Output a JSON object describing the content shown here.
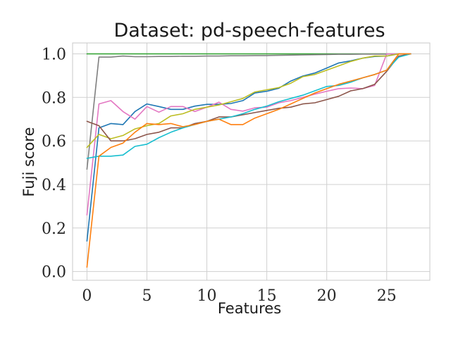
{
  "chart_data": {
    "type": "line",
    "title": "Dataset: pd-speech-features",
    "xlabel": "Features",
    "ylabel": "Fuji score",
    "xlim": [
      -1.2,
      28.6
    ],
    "ylim": [
      -0.04,
      1.05
    ],
    "xticks": [
      0,
      5,
      10,
      15,
      20,
      25
    ],
    "xtick_labels": [
      "0",
      "5",
      "10",
      "15",
      "20",
      "25"
    ],
    "yticks": [
      0.0,
      0.2,
      0.4,
      0.6,
      0.8,
      1.0
    ],
    "ytick_labels": [
      "0.0",
      "0.2",
      "0.4",
      "0.6",
      "0.8",
      "1.0"
    ],
    "grid": true,
    "legend": "none",
    "x": [
      0,
      1,
      2,
      3,
      4,
      5,
      6,
      7,
      8,
      9,
      10,
      11,
      12,
      13,
      14,
      15,
      16,
      17,
      18,
      19,
      20,
      21,
      22,
      23,
      24,
      25,
      26,
      27
    ],
    "series": [
      {
        "color": "#2ca02c",
        "values": [
          1.0,
          1.0,
          1.0,
          1.0,
          1.0,
          1.0,
          1.0,
          1.0,
          1.0,
          1.0,
          1.0,
          1.0,
          1.0,
          1.0,
          1.0,
          1.0,
          1.0,
          1.0,
          1.0,
          1.0,
          1.0,
          1.0,
          1.0,
          1.0,
          1.0,
          1.0,
          1.0,
          1.0
        ]
      },
      {
        "color": "#7f7f7f",
        "values": [
          0.47,
          0.985,
          0.985,
          0.99,
          0.987,
          0.987,
          0.988,
          0.988,
          0.989,
          0.989,
          0.99,
          0.99,
          0.991,
          0.991,
          0.992,
          0.992,
          0.993,
          0.994,
          0.995,
          0.996,
          0.997,
          0.998,
          0.998,
          0.999,
          0.999,
          0.999,
          1.0,
          1.0
        ]
      },
      {
        "color": "#1f77b4",
        "values": [
          0.14,
          0.66,
          0.68,
          0.675,
          0.735,
          0.77,
          0.758,
          0.745,
          0.745,
          0.76,
          0.768,
          0.768,
          0.772,
          0.785,
          0.82,
          0.828,
          0.842,
          0.875,
          0.898,
          0.912,
          0.935,
          0.958,
          0.968,
          0.98,
          0.988,
          0.99,
          1.0,
          1.0
        ]
      },
      {
        "color": "#e377c2",
        "values": [
          0.26,
          0.77,
          0.785,
          0.735,
          0.7,
          0.758,
          0.732,
          0.758,
          0.758,
          0.735,
          0.755,
          0.778,
          0.745,
          0.737,
          0.752,
          0.755,
          0.775,
          0.785,
          0.8,
          0.815,
          0.828,
          0.84,
          0.843,
          0.84,
          0.855,
          1.0,
          1.0,
          1.0
        ]
      },
      {
        "color": "#bcbd22",
        "values": [
          0.57,
          0.63,
          0.61,
          0.625,
          0.655,
          0.67,
          0.68,
          0.715,
          0.725,
          0.745,
          0.755,
          0.765,
          0.78,
          0.795,
          0.825,
          0.835,
          0.845,
          0.865,
          0.895,
          0.905,
          0.925,
          0.945,
          0.965,
          0.98,
          0.99,
          0.99,
          1.0,
          1.0
        ]
      },
      {
        "color": "#8c564b",
        "values": [
          0.69,
          0.67,
          0.6,
          0.6,
          0.61,
          0.63,
          0.64,
          0.66,
          0.66,
          0.68,
          0.69,
          0.71,
          0.71,
          0.72,
          0.73,
          0.74,
          0.75,
          0.755,
          0.77,
          0.775,
          0.79,
          0.805,
          0.83,
          0.84,
          0.86,
          0.92,
          0.99,
          1.0
        ]
      },
      {
        "color": "#17becf",
        "values": [
          0.52,
          0.53,
          0.53,
          0.535,
          0.575,
          0.585,
          0.615,
          0.64,
          0.66,
          0.675,
          0.69,
          0.7,
          0.71,
          0.725,
          0.745,
          0.76,
          0.78,
          0.795,
          0.81,
          0.83,
          0.85,
          0.855,
          0.87,
          0.89,
          0.905,
          0.925,
          0.985,
          1.0
        ]
      },
      {
        "color": "#ff7f0e",
        "values": [
          0.02,
          0.53,
          0.57,
          0.59,
          0.64,
          0.68,
          0.675,
          0.68,
          0.665,
          0.675,
          0.69,
          0.7,
          0.675,
          0.675,
          0.705,
          0.725,
          0.745,
          0.77,
          0.795,
          0.82,
          0.84,
          0.86,
          0.875,
          0.89,
          0.905,
          0.925,
          1.0,
          1.0
        ]
      }
    ]
  }
}
